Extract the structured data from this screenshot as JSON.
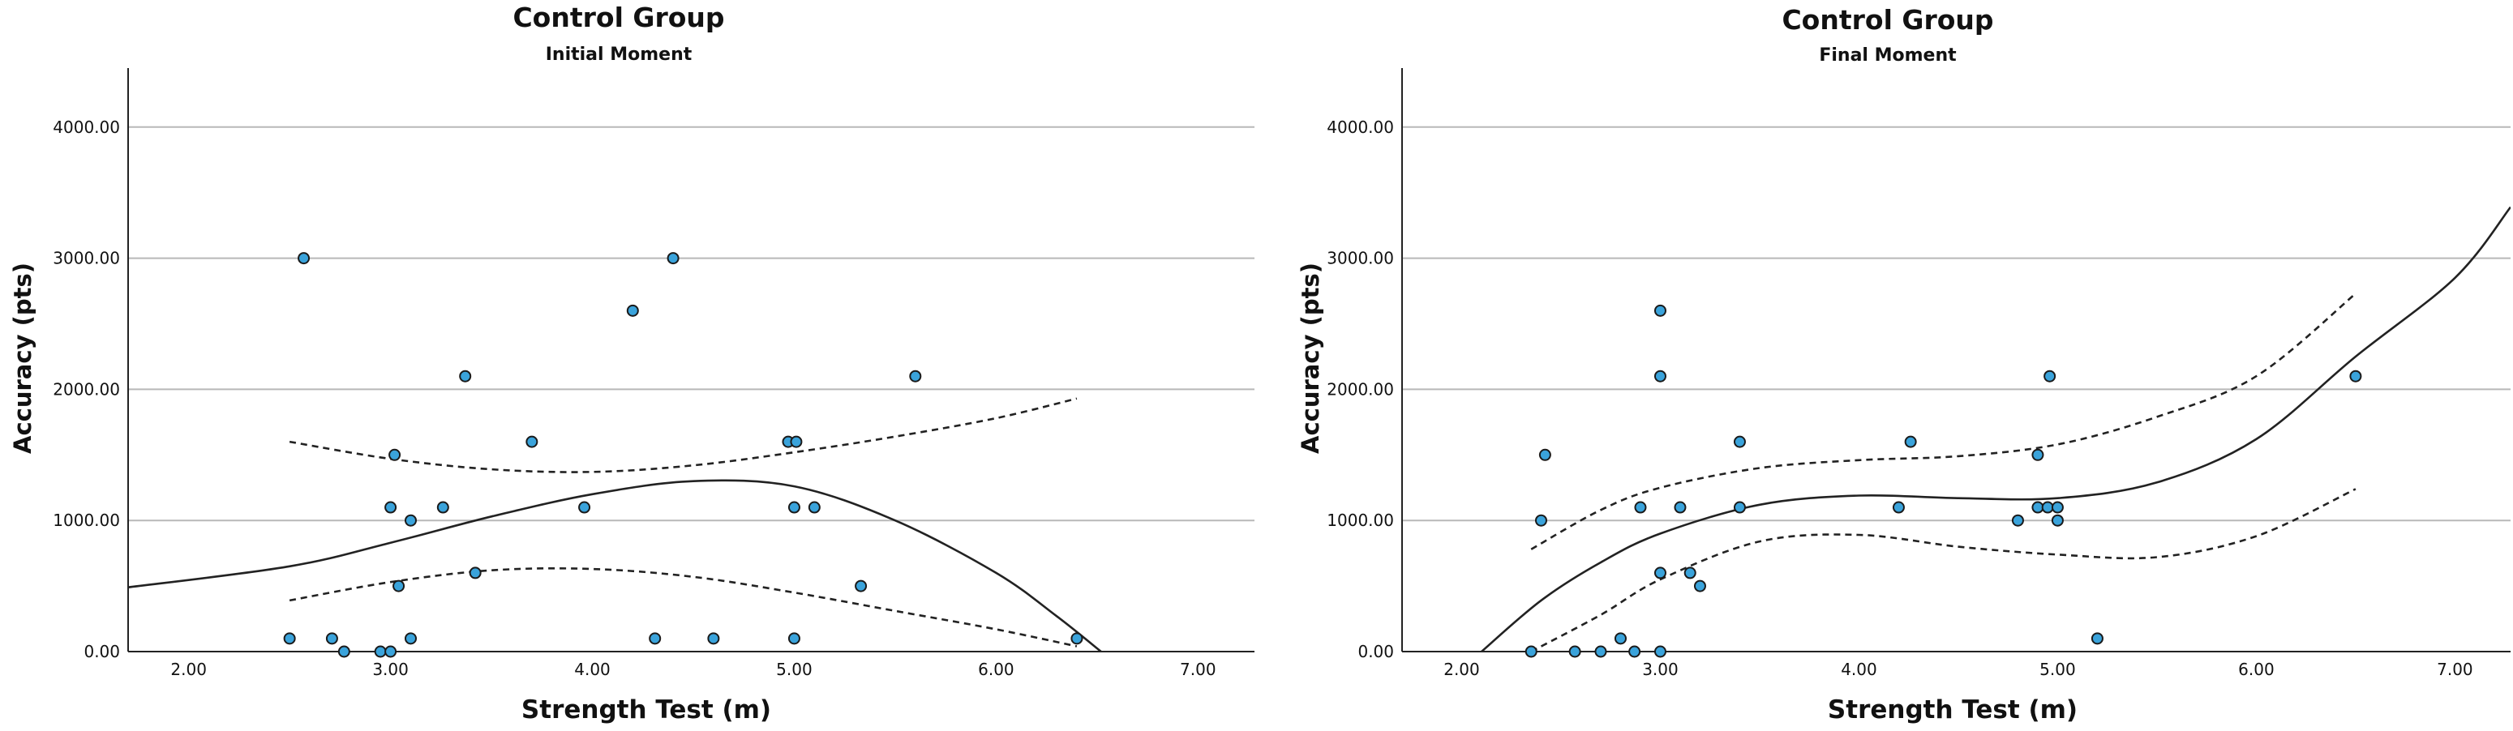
{
  "chart_data": [
    {
      "type": "scatter",
      "title": "Control Group",
      "subtitle": "Initial Moment",
      "xlabel": "Strength Test (m)",
      "ylabel": "Accuracy (pts)",
      "xlim": [
        1.7,
        7.28
      ],
      "ylim": [
        0,
        4450
      ],
      "xticks": [
        "2.00",
        "3.00",
        "4.00",
        "5.00",
        "6.00",
        "7.00"
      ],
      "xtick_values": [
        2,
        3,
        4,
        5,
        6,
        7
      ],
      "yticks": [
        "0.00",
        "1000.00",
        "2000.00",
        "3000.00",
        "4000.00"
      ],
      "ytick_values": [
        0,
        1000,
        2000,
        3000,
        4000
      ],
      "grid": "horizontal",
      "points": [
        {
          "x": 2.5,
          "y": 100
        },
        {
          "x": 2.57,
          "y": 3000
        },
        {
          "x": 2.71,
          "y": 100
        },
        {
          "x": 2.77,
          "y": 0
        },
        {
          "x": 2.95,
          "y": 0
        },
        {
          "x": 3.0,
          "y": 1100
        },
        {
          "x": 3.0,
          "y": 0
        },
        {
          "x": 3.02,
          "y": 1500
        },
        {
          "x": 3.04,
          "y": 500
        },
        {
          "x": 3.1,
          "y": 1000
        },
        {
          "x": 3.1,
          "y": 100
        },
        {
          "x": 3.26,
          "y": 1100
        },
        {
          "x": 3.37,
          "y": 2100
        },
        {
          "x": 3.42,
          "y": 600
        },
        {
          "x": 3.7,
          "y": 1600
        },
        {
          "x": 3.96,
          "y": 1100
        },
        {
          "x": 4.2,
          "y": 2600
        },
        {
          "x": 4.31,
          "y": 100
        },
        {
          "x": 4.4,
          "y": 3000
        },
        {
          "x": 4.6,
          "y": 100
        },
        {
          "x": 4.97,
          "y": 1600
        },
        {
          "x": 5.01,
          "y": 1600
        },
        {
          "x": 5.0,
          "y": 1100
        },
        {
          "x": 5.0,
          "y": 100
        },
        {
          "x": 5.1,
          "y": 1100
        },
        {
          "x": 5.33,
          "y": 500
        },
        {
          "x": 5.6,
          "y": 2100
        },
        {
          "x": 6.4,
          "y": 100
        }
      ],
      "fit_curve": [
        {
          "x": 1.7,
          "y": 490
        },
        {
          "x": 2.5,
          "y": 650
        },
        {
          "x": 3.0,
          "y": 830
        },
        {
          "x": 3.5,
          "y": 1030
        },
        {
          "x": 4.0,
          "y": 1200
        },
        {
          "x": 4.5,
          "y": 1300
        },
        {
          "x": 5.0,
          "y": 1260
        },
        {
          "x": 5.5,
          "y": 1000
        },
        {
          "x": 6.0,
          "y": 600
        },
        {
          "x": 6.3,
          "y": 270
        },
        {
          "x": 6.52,
          "y": 0
        }
      ],
      "ci_upper": [
        {
          "x": 2.5,
          "y": 1600
        },
        {
          "x": 3.0,
          "y": 1470
        },
        {
          "x": 3.5,
          "y": 1390
        },
        {
          "x": 4.0,
          "y": 1370
        },
        {
          "x": 4.5,
          "y": 1420
        },
        {
          "x": 5.0,
          "y": 1520
        },
        {
          "x": 5.5,
          "y": 1640
        },
        {
          "x": 6.0,
          "y": 1780
        },
        {
          "x": 6.4,
          "y": 1930
        }
      ],
      "ci_lower": [
        {
          "x": 2.5,
          "y": 390
        },
        {
          "x": 3.0,
          "y": 530
        },
        {
          "x": 3.5,
          "y": 620
        },
        {
          "x": 4.0,
          "y": 630
        },
        {
          "x": 4.5,
          "y": 570
        },
        {
          "x": 5.0,
          "y": 450
        },
        {
          "x": 5.5,
          "y": 310
        },
        {
          "x": 6.0,
          "y": 170
        },
        {
          "x": 6.4,
          "y": 40
        }
      ]
    },
    {
      "type": "scatter",
      "title": "Control Group",
      "subtitle": "Final Moment",
      "xlabel": "Strength Test (m)",
      "ylabel": "Accuracy (pts)",
      "xlim": [
        1.7,
        7.28
      ],
      "ylim": [
        0,
        4450
      ],
      "xticks": [
        "2.00",
        "3.00",
        "4.00",
        "5.00",
        "6.00",
        "7.00"
      ],
      "xtick_values": [
        2,
        3,
        4,
        5,
        6,
        7
      ],
      "yticks": [
        "0.00",
        "1000.00",
        "2000.00",
        "3000.00",
        "4000.00"
      ],
      "ytick_values": [
        0,
        1000,
        2000,
        3000,
        4000
      ],
      "grid": "horizontal",
      "points": [
        {
          "x": 2.35,
          "y": 0
        },
        {
          "x": 2.4,
          "y": 1000
        },
        {
          "x": 2.42,
          "y": 1500
        },
        {
          "x": 2.57,
          "y": 0
        },
        {
          "x": 2.7,
          "y": 0
        },
        {
          "x": 2.8,
          "y": 100
        },
        {
          "x": 2.87,
          "y": 0
        },
        {
          "x": 2.9,
          "y": 1100
        },
        {
          "x": 3.0,
          "y": 2600
        },
        {
          "x": 3.0,
          "y": 2100
        },
        {
          "x": 3.0,
          "y": 600
        },
        {
          "x": 3.0,
          "y": 0
        },
        {
          "x": 3.1,
          "y": 1100
        },
        {
          "x": 3.15,
          "y": 600
        },
        {
          "x": 3.2,
          "y": 500
        },
        {
          "x": 3.4,
          "y": 1600
        },
        {
          "x": 3.4,
          "y": 1100
        },
        {
          "x": 4.2,
          "y": 1100
        },
        {
          "x": 4.26,
          "y": 1600
        },
        {
          "x": 4.8,
          "y": 1000
        },
        {
          "x": 4.9,
          "y": 1500
        },
        {
          "x": 4.9,
          "y": 1100
        },
        {
          "x": 4.95,
          "y": 1100
        },
        {
          "x": 4.96,
          "y": 2100
        },
        {
          "x": 5.0,
          "y": 1100
        },
        {
          "x": 5.0,
          "y": 1000
        },
        {
          "x": 5.2,
          "y": 100
        },
        {
          "x": 6.5,
          "y": 2100
        }
      ],
      "fit_curve": [
        {
          "x": 2.1,
          "y": 0
        },
        {
          "x": 2.4,
          "y": 390
        },
        {
          "x": 2.7,
          "y": 680
        },
        {
          "x": 3.0,
          "y": 900
        },
        {
          "x": 3.5,
          "y": 1120
        },
        {
          "x": 4.0,
          "y": 1190
        },
        {
          "x": 4.5,
          "y": 1170
        },
        {
          "x": 5.0,
          "y": 1170
        },
        {
          "x": 5.5,
          "y": 1290
        },
        {
          "x": 6.0,
          "y": 1620
        },
        {
          "x": 6.5,
          "y": 2250
        },
        {
          "x": 7.0,
          "y": 2850
        },
        {
          "x": 7.28,
          "y": 3390
        }
      ],
      "ci_upper": [
        {
          "x": 2.35,
          "y": 780
        },
        {
          "x": 2.7,
          "y": 1080
        },
        {
          "x": 3.0,
          "y": 1250
        },
        {
          "x": 3.5,
          "y": 1400
        },
        {
          "x": 4.0,
          "y": 1460
        },
        {
          "x": 4.5,
          "y": 1490
        },
        {
          "x": 5.0,
          "y": 1580
        },
        {
          "x": 5.5,
          "y": 1790
        },
        {
          "x": 6.0,
          "y": 2100
        },
        {
          "x": 6.5,
          "y": 2730
        }
      ],
      "ci_lower": [
        {
          "x": 2.35,
          "y": 0
        },
        {
          "x": 2.7,
          "y": 280
        },
        {
          "x": 3.0,
          "y": 550
        },
        {
          "x": 3.5,
          "y": 840
        },
        {
          "x": 4.0,
          "y": 890
        },
        {
          "x": 4.5,
          "y": 800
        },
        {
          "x": 5.0,
          "y": 740
        },
        {
          "x": 5.5,
          "y": 720
        },
        {
          "x": 6.0,
          "y": 880
        },
        {
          "x": 6.5,
          "y": 1240
        }
      ]
    }
  ]
}
